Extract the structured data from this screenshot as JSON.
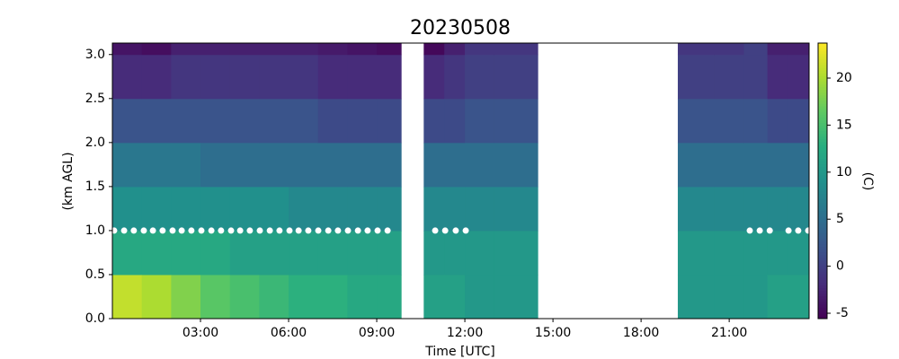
{
  "chart_data": {
    "type": "heatmap",
    "title": "20230508",
    "xlabel": "Time [UTC]",
    "ylabel": "(km AGL)",
    "colorbar_label": "(C)",
    "colormap": "viridis",
    "xlim": [
      0,
      23.72
    ],
    "ylim": [
      0,
      3.13
    ],
    "clim": [
      -5.57,
      23.72
    ],
    "xticks": [
      {
        "value": 3,
        "label": "03:00"
      },
      {
        "value": 6,
        "label": "06:00"
      },
      {
        "value": 9,
        "label": "09:00"
      },
      {
        "value": 12,
        "label": "12:00"
      },
      {
        "value": 15,
        "label": "15:00"
      },
      {
        "value": 18,
        "label": "18:00"
      },
      {
        "value": 21,
        "label": "21:00"
      }
    ],
    "yticks": [
      {
        "value": 0,
        "label": "0.0"
      },
      {
        "value": 0.5,
        "label": "0.5"
      },
      {
        "value": 1,
        "label": "1.0"
      },
      {
        "value": 1.5,
        "label": "1.5"
      },
      {
        "value": 2,
        "label": "2.0"
      },
      {
        "value": 2.5,
        "label": "2.5"
      },
      {
        "value": 3,
        "label": "3.0"
      }
    ],
    "cticks": [
      -5,
      0,
      5,
      10,
      15,
      20
    ],
    "x_bins": [
      0,
      1,
      2,
      3,
      4,
      5,
      6,
      7,
      8,
      9,
      9.83,
      10.6,
      11.3,
      12,
      13,
      14.48,
      19.25,
      20.5,
      21.5,
      22.3,
      23,
      23.72
    ],
    "y_bins": [
      0,
      0.5,
      1,
      1.5,
      2,
      2.5,
      3,
      3.13
    ],
    "values": [
      [
        21,
        12,
        9,
        6,
        2,
        -2,
        -4
      ],
      [
        20,
        12,
        9,
        6,
        2,
        -2,
        -4.5
      ],
      [
        18,
        12,
        9,
        6,
        2,
        -1,
        -3
      ],
      [
        16,
        12,
        9,
        5,
        2,
        -1,
        -3
      ],
      [
        15,
        11,
        9,
        5,
        2,
        -1,
        -3
      ],
      [
        14,
        11,
        9,
        5,
        2,
        -1,
        -3
      ],
      [
        13,
        11,
        8,
        5,
        2,
        -1,
        -3
      ],
      [
        13,
        11,
        8,
        5,
        1,
        -2,
        -3.5
      ],
      [
        12,
        11,
        8,
        5,
        1,
        -2,
        -4
      ],
      [
        12,
        11,
        8,
        5,
        1,
        -2,
        -4.5
      ],
      null,
      [
        11,
        10,
        8,
        5,
        1,
        -2,
        -5
      ],
      [
        11,
        10,
        8,
        5,
        1,
        -1,
        -3
      ],
      [
        10,
        10,
        8,
        5,
        2,
        0,
        -1
      ],
      [
        10,
        10,
        8,
        5,
        2,
        0,
        -1
      ],
      null,
      [
        10,
        10,
        8,
        5,
        2,
        0,
        -1
      ],
      [
        10,
        10,
        8,
        5,
        2,
        0,
        -1
      ],
      [
        10,
        10,
        8,
        5,
        2,
        0,
        0
      ],
      [
        11,
        10,
        8,
        5,
        1,
        -2,
        -3
      ],
      [
        11,
        10,
        8,
        5,
        1,
        -2,
        -3
      ]
    ],
    "points": {
      "color": "#ffffff",
      "x": [
        0.06,
        0.4,
        0.73,
        1.07,
        1.38,
        1.71,
        2.05,
        2.36,
        2.69,
        3.03,
        3.37,
        3.7,
        4.04,
        4.35,
        4.68,
        5.02,
        5.36,
        5.69,
        6.03,
        6.34,
        6.67,
        7.01,
        7.35,
        7.68,
        8.02,
        8.36,
        8.69,
        9.03,
        9.37,
        10.99,
        11.33,
        11.69,
        12.03,
        21.7,
        22.04,
        22.38,
        23.02,
        23.35,
        23.69
      ],
      "y": [
        1,
        1,
        1,
        1,
        1,
        1,
        1,
        1,
        1,
        1,
        1,
        1,
        1,
        1,
        1,
        1,
        1,
        1,
        1,
        1,
        1,
        1,
        1,
        1,
        1,
        1,
        1,
        1,
        1,
        1,
        1,
        1,
        1,
        1,
        1,
        1,
        1,
        1,
        1
      ]
    }
  }
}
